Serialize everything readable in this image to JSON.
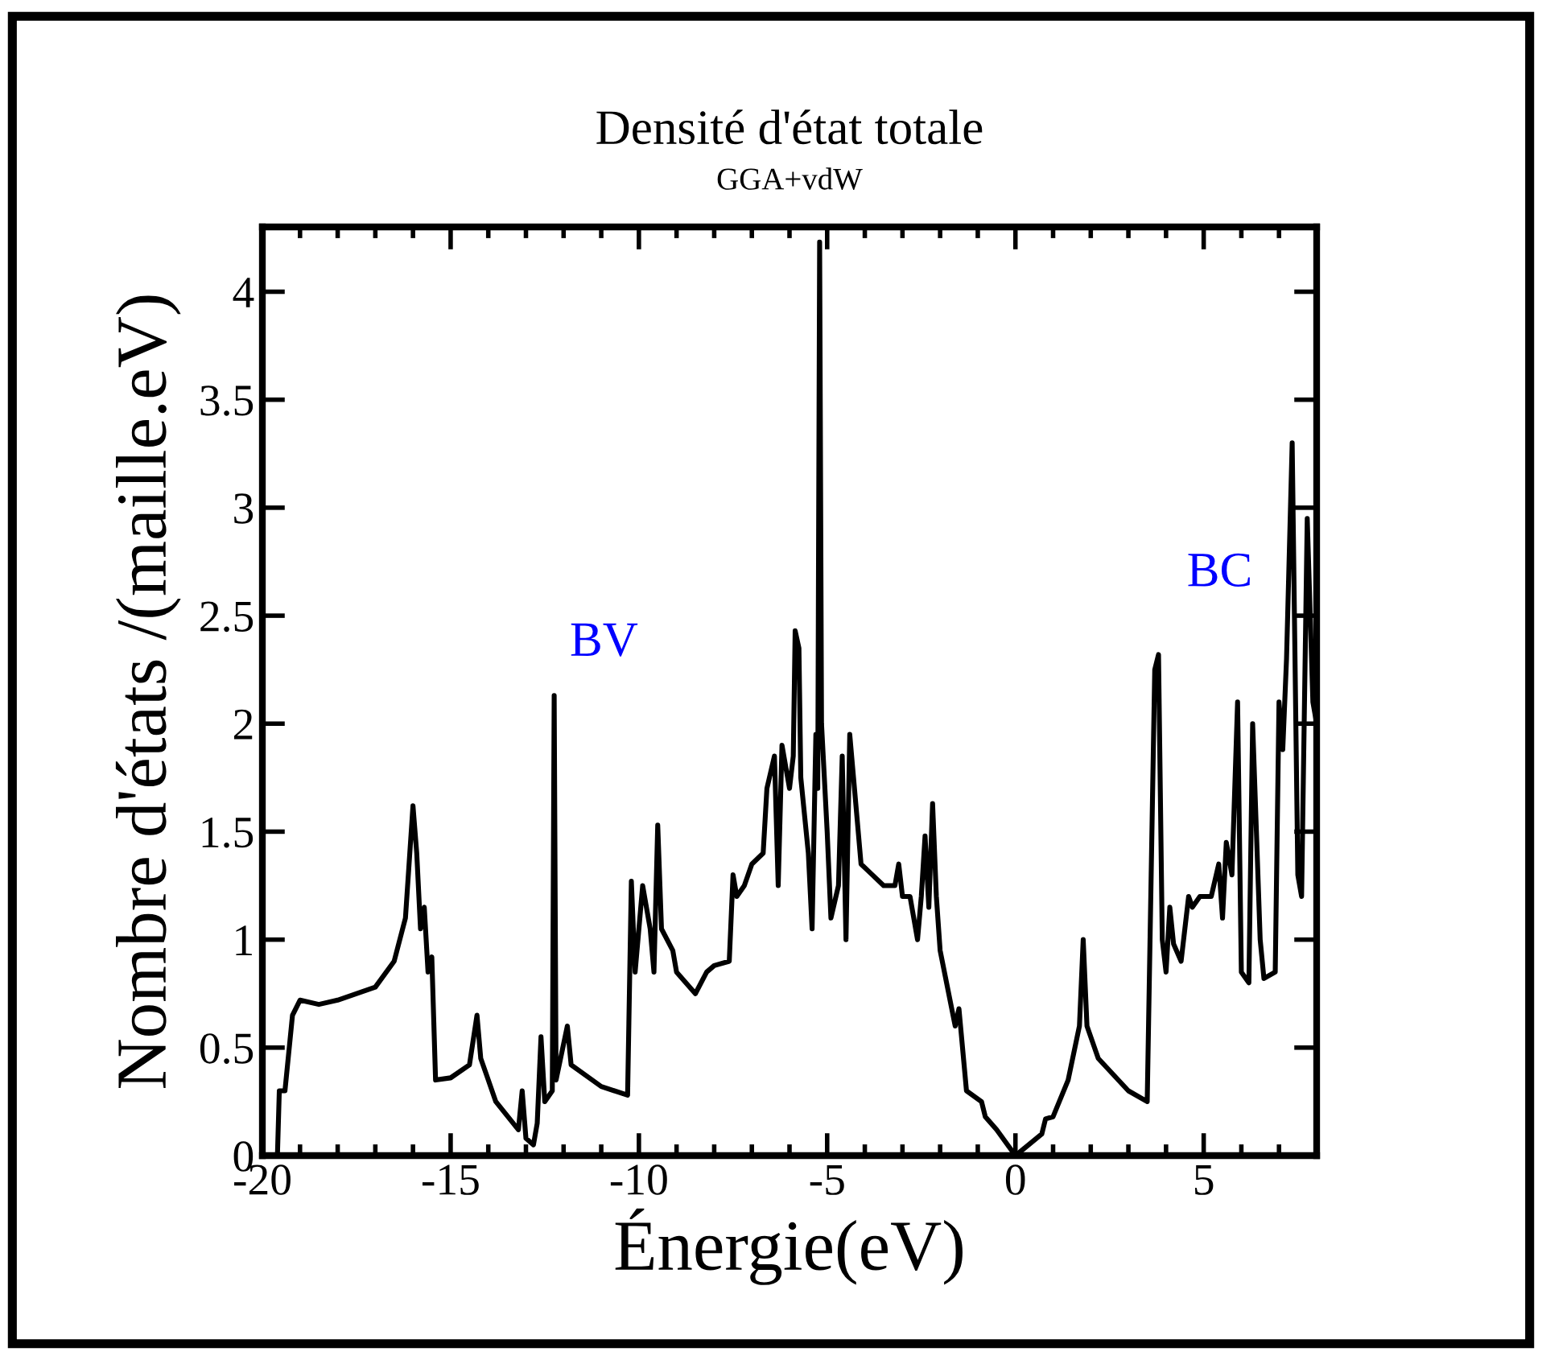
{
  "chart_data": {
    "type": "line",
    "title": "Densité d'état totale",
    "subtitle": "GGA+vdW",
    "xlabel": "Énergie(eV)",
    "ylabel": "Nombre d'états /(maille.eV)",
    "annotations": [
      "BV",
      "BC"
    ],
    "series": [
      {
        "color": "#000000",
        "x": [
          -19.6,
          -19.55,
          -19.4,
          -19.2,
          -19.0,
          -18.5,
          -18.0,
          -17.0,
          -16.5,
          -16.2,
          -16.0,
          -15.9,
          -15.8,
          -15.7,
          -15.6,
          -15.5,
          -15.4,
          -15.0,
          -14.5,
          -14.3,
          -14.2,
          -14.0,
          -13.8,
          -13.2,
          -13.1,
          -13.0,
          -12.8,
          -12.7,
          -12.6,
          -12.5,
          -12.3,
          -12.25,
          -12.2,
          -11.9,
          -11.8,
          -11.0,
          -10.3,
          -10.2,
          -10.1,
          -9.9,
          -9.7,
          -9.6,
          -9.5,
          -9.4,
          -9.1,
          -9.0,
          -8.5,
          -8.2,
          -8.0,
          -7.6,
          -7.5,
          -7.4,
          -7.2,
          -7.0,
          -6.7,
          -6.6,
          -6.4,
          -6.3,
          -6.2,
          -6.0,
          -5.9,
          -5.85,
          -5.75,
          -5.7,
          -5.5,
          -5.4,
          -5.3,
          -5.25,
          -5.2,
          -5.15,
          -5.0,
          -4.9,
          -4.7,
          -4.6,
          -4.5,
          -4.4,
          -4.3,
          -4.1,
          -3.8,
          -3.5,
          -3.2,
          -3.1,
          -3.0,
          -2.8,
          -2.7,
          -2.6,
          -2.5,
          -2.4,
          -2.3,
          -2.2,
          -2.1,
          -2.0,
          -1.6,
          -1.5,
          -1.3,
          -0.9,
          -0.8,
          -0.5,
          0.0,
          0.7,
          0.8,
          1.0,
          1.4,
          1.7,
          1.8,
          1.9,
          2.2,
          3.0,
          3.5,
          3.7,
          3.8,
          3.9,
          4.0,
          4.1,
          4.2,
          4.4,
          4.6,
          4.7,
          4.9,
          5.2,
          5.4,
          5.5,
          5.6,
          5.75,
          5.9,
          6.0,
          6.2,
          6.3,
          6.5,
          6.6,
          6.9,
          7.0,
          7.1,
          7.2,
          7.35,
          7.5,
          7.6,
          7.75,
          7.9,
          8.0
        ],
        "values": [
          0.0,
          0.3,
          0.3,
          0.65,
          0.72,
          0.7,
          0.72,
          0.78,
          0.9,
          1.1,
          1.62,
          1.4,
          1.05,
          1.15,
          0.85,
          0.92,
          0.35,
          0.36,
          0.42,
          0.65,
          0.45,
          0.35,
          0.25,
          0.12,
          0.3,
          0.08,
          0.05,
          0.15,
          0.55,
          0.25,
          0.3,
          2.13,
          0.35,
          0.6,
          0.42,
          0.32,
          0.28,
          1.27,
          0.85,
          1.25,
          1.05,
          0.85,
          1.53,
          1.05,
          0.95,
          0.85,
          0.75,
          0.85,
          0.88,
          0.9,
          1.3,
          1.2,
          1.25,
          1.35,
          1.4,
          1.7,
          1.85,
          1.25,
          1.9,
          1.7,
          1.85,
          2.43,
          2.35,
          1.75,
          1.4,
          1.05,
          1.95,
          1.7,
          4.23,
          2.0,
          1.5,
          1.1,
          1.25,
          1.85,
          1.0,
          1.95,
          1.75,
          1.35,
          1.3,
          1.25,
          1.25,
          1.35,
          1.2,
          1.2,
          1.1,
          1.0,
          1.2,
          1.48,
          1.15,
          1.63,
          1.2,
          0.95,
          0.6,
          0.68,
          0.3,
          0.25,
          0.18,
          0.12,
          0.0,
          0.1,
          0.17,
          0.18,
          0.35,
          0.6,
          1.0,
          0.6,
          0.45,
          0.3,
          0.25,
          2.25,
          2.32,
          1.0,
          0.85,
          1.15,
          0.98,
          0.9,
          1.2,
          1.15,
          1.2,
          1.2,
          1.35,
          1.1,
          1.45,
          1.3,
          2.1,
          0.85,
          0.8,
          2.0,
          1.0,
          0.82,
          0.85,
          2.1,
          1.88,
          2.3,
          3.3,
          1.3,
          1.2,
          2.95,
          2.1,
          2.0
        ]
      }
    ],
    "xlim": [
      -20,
      8
    ],
    "ylim": [
      0,
      4.3
    ],
    "xticks": [
      -20,
      -15,
      -10,
      -5,
      0,
      5
    ],
    "yticks": [
      0,
      0.5,
      1,
      1.5,
      2,
      2.5,
      3,
      3.5,
      4
    ],
    "grid": false,
    "legend": false,
    "marker": "none",
    "line_style": "solid"
  }
}
